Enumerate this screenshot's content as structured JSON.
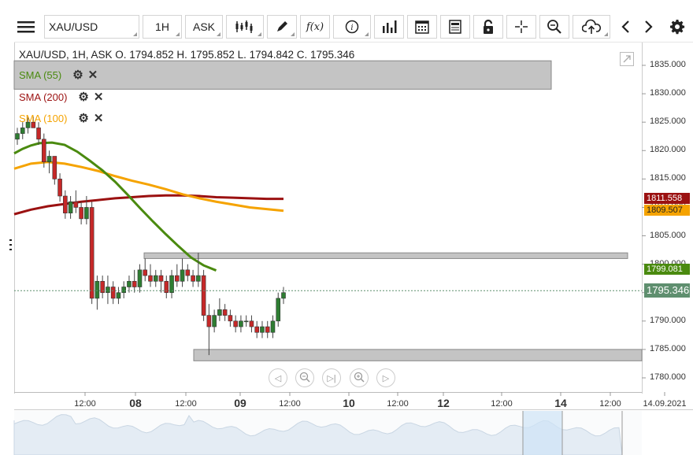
{
  "toolbar": {
    "symbol": "XAU/USD",
    "timeframe": "1H",
    "price_type": "ASK"
  },
  "ohlc_line": "XAU/USD, 1H, ASK   O. 1794.852 H. 1795.852 L. 1794.842 C. 1795.346",
  "indicators": [
    {
      "label": "SMA (55)",
      "color": "#4a8a0f"
    },
    {
      "label": "SMA (200)",
      "color": "#9b1111"
    },
    {
      "label": "SMA (100)",
      "color": "#f5a300"
    }
  ],
  "y_axis": {
    "ticks": [
      "1835.000",
      "1830.000",
      "1825.000",
      "1820.000",
      "1815.000",
      "1810.000",
      "1805.000",
      "1800.000",
      "1795.000",
      "1790.000",
      "1785.000",
      "1780.000"
    ]
  },
  "x_axis": {
    "ticks": [
      {
        "label": "12:00",
        "bold": false
      },
      {
        "label": "08",
        "bold": true
      },
      {
        "label": "12:00",
        "bold": false
      },
      {
        "label": "09",
        "bold": true
      },
      {
        "label": "12:00",
        "bold": false
      },
      {
        "label": "10",
        "bold": true
      },
      {
        "label": "12:00",
        "bold": false
      },
      {
        "label": "12",
        "bold": true
      },
      {
        "label": "12:00",
        "bold": false
      },
      {
        "label": "14",
        "bold": true
      },
      {
        "label": "12:00",
        "bold": false
      },
      {
        "label": "14.09.2021",
        "bold": false
      }
    ]
  },
  "price_tags": {
    "sma200": {
      "value": "1811.558",
      "color": "#9b1111"
    },
    "sma100": {
      "value": "1809.507",
      "color": "#f5a300"
    },
    "sma55": {
      "value": "1799.081",
      "color": "#4a8a0f"
    },
    "last": {
      "value": "1795.346",
      "color": "#5f8f6f"
    }
  },
  "chart_data": {
    "type": "candlestick",
    "ylim": [
      1778,
      1840
    ],
    "zones": [
      {
        "from": 1830.8,
        "to": 1835.8
      },
      {
        "from": 1801.0,
        "to": 1802.0
      },
      {
        "from": 1783.0,
        "to": 1785.0
      }
    ],
    "candles": [
      [
        1822,
        1824,
        1821,
        1823
      ],
      [
        1823,
        1825,
        1822,
        1824
      ],
      [
        1824,
        1826,
        1823,
        1825
      ],
      [
        1825,
        1826,
        1824,
        1824
      ],
      [
        1824,
        1825,
        1821,
        1822
      ],
      [
        1822,
        1823,
        1817,
        1818
      ],
      [
        1818,
        1820,
        1816,
        1819
      ],
      [
        1819,
        1819,
        1814,
        1815
      ],
      [
        1815,
        1816,
        1811,
        1812
      ],
      [
        1812,
        1813,
        1808,
        1809
      ],
      [
        1809,
        1812,
        1808,
        1811
      ],
      [
        1811,
        1813,
        1809,
        1810
      ],
      [
        1810,
        1811,
        1807,
        1808
      ],
      [
        1808,
        1812,
        1807,
        1810
      ],
      [
        1810,
        1811,
        1793,
        1794
      ],
      [
        1794,
        1798,
        1792,
        1797
      ],
      [
        1797,
        1798,
        1794,
        1795
      ],
      [
        1795,
        1798,
        1793,
        1796
      ],
      [
        1796,
        1797,
        1793,
        1794
      ],
      [
        1794,
        1796,
        1793,
        1795
      ],
      [
        1795,
        1797,
        1794,
        1796
      ],
      [
        1796,
        1798,
        1795,
        1797
      ],
      [
        1797,
        1799,
        1795,
        1796
      ],
      [
        1796,
        1800,
        1795,
        1799
      ],
      [
        1799,
        1801,
        1797,
        1798
      ],
      [
        1798,
        1800,
        1796,
        1797
      ],
      [
        1797,
        1799,
        1796,
        1798
      ],
      [
        1798,
        1799,
        1795,
        1797
      ],
      [
        1797,
        1798,
        1794,
        1795
      ],
      [
        1795,
        1799,
        1794,
        1798
      ],
      [
        1798,
        1800,
        1796,
        1797
      ],
      [
        1797,
        1801,
        1796,
        1799
      ],
      [
        1799,
        1800,
        1797,
        1798
      ],
      [
        1798,
        1799,
        1796,
        1797
      ],
      [
        1797,
        1802,
        1796,
        1798
      ],
      [
        1798,
        1799,
        1790,
        1791
      ],
      [
        1791,
        1793,
        1784,
        1789
      ],
      [
        1789,
        1792,
        1788,
        1791
      ],
      [
        1791,
        1794,
        1790,
        1792
      ],
      [
        1792,
        1793,
        1790,
        1791
      ],
      [
        1791,
        1792,
        1789,
        1790
      ],
      [
        1790,
        1791,
        1788,
        1789
      ],
      [
        1789,
        1791,
        1788,
        1790
      ],
      [
        1790,
        1791,
        1789,
        1790
      ],
      [
        1790,
        1791,
        1788,
        1789
      ],
      [
        1789,
        1790,
        1787,
        1788
      ],
      [
        1788,
        1790,
        1787,
        1789
      ],
      [
        1789,
        1790,
        1787,
        1788
      ],
      [
        1788,
        1791,
        1787,
        1790
      ],
      [
        1790,
        1795,
        1789,
        1794
      ],
      [
        1794,
        1796,
        1793,
        1795
      ]
    ],
    "sma55": [
      [
        0,
        1819.5
      ],
      [
        10,
        1820.3
      ],
      [
        20,
        1820.9
      ],
      [
        30,
        1821.3
      ],
      [
        45,
        1821.4
      ],
      [
        60,
        1821.0
      ],
      [
        75,
        1819.8
      ],
      [
        90,
        1818.2
      ],
      [
        105,
        1816.5
      ],
      [
        120,
        1814.5
      ],
      [
        135,
        1812.2
      ],
      [
        150,
        1809.8
      ],
      [
        165,
        1807.5
      ],
      [
        180,
        1805.3
      ],
      [
        195,
        1803.2
      ],
      [
        210,
        1801.2
      ],
      [
        225,
        1799.8
      ],
      [
        240,
        1798.9
      ]
    ],
    "sma100": [
      [
        0,
        1816.8
      ],
      [
        20,
        1817.7
      ],
      [
        40,
        1818.0
      ],
      [
        60,
        1817.7
      ],
      [
        80,
        1817.1
      ],
      [
        100,
        1816.4
      ],
      [
        120,
        1815.5
      ],
      [
        140,
        1814.7
      ],
      [
        160,
        1814.0
      ],
      [
        180,
        1813.2
      ],
      [
        200,
        1812.3
      ],
      [
        220,
        1811.6
      ],
      [
        240,
        1811.0
      ],
      [
        260,
        1810.5
      ],
      [
        280,
        1810.0
      ],
      [
        300,
        1809.7
      ],
      [
        320,
        1809.4
      ]
    ],
    "sma200": [
      [
        0,
        1808.8
      ],
      [
        20,
        1809.6
      ],
      [
        40,
        1810.2
      ],
      [
        60,
        1810.6
      ],
      [
        80,
        1811.0
      ],
      [
        100,
        1811.3
      ],
      [
        120,
        1811.6
      ],
      [
        140,
        1811.8
      ],
      [
        160,
        1812.0
      ],
      [
        180,
        1812.1
      ],
      [
        200,
        1812.1
      ],
      [
        220,
        1812.0
      ],
      [
        240,
        1811.8
      ],
      [
        260,
        1811.7
      ],
      [
        280,
        1811.6
      ],
      [
        300,
        1811.5
      ],
      [
        320,
        1811.5
      ]
    ]
  }
}
